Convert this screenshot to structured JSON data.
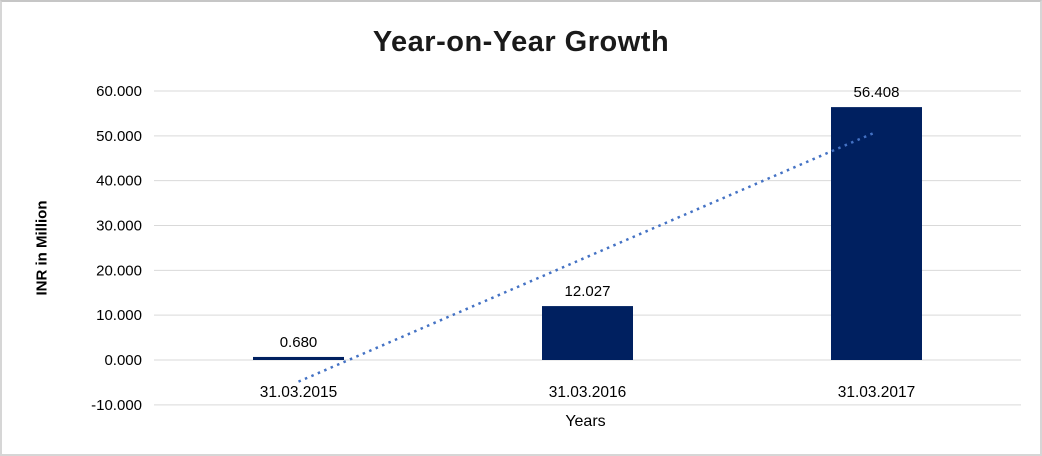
{
  "chart_data": {
    "type": "bar",
    "title": "Year-on-Year Growth",
    "xlabel": "Years",
    "ylabel": "INR in Million",
    "categories": [
      "31.03.2015",
      "31.03.2016",
      "31.03.2017"
    ],
    "values": [
      0.68,
      12.027,
      56.408
    ],
    "data_labels": [
      "0.680",
      "12.027",
      "56.408"
    ],
    "ylim": [
      -10,
      60
    ],
    "ytick_values": [
      60,
      50,
      40,
      30,
      20,
      10,
      0,
      -10
    ],
    "ytick_labels": [
      "60.000",
      "50.000",
      "40.000",
      "30.000",
      "20.000",
      "10.000",
      "0.000",
      "-10.000"
    ],
    "grid": true,
    "legend_position": "none",
    "colors": {
      "bar": "#002060",
      "gridline": "#d9d9d9",
      "trendline": "#4472c4",
      "text": "#000000",
      "title_text": "#1a1a1a"
    },
    "trendline": {
      "type": "linear",
      "style": "dotted",
      "y_start": -4.83,
      "y_end": 50.9
    }
  }
}
